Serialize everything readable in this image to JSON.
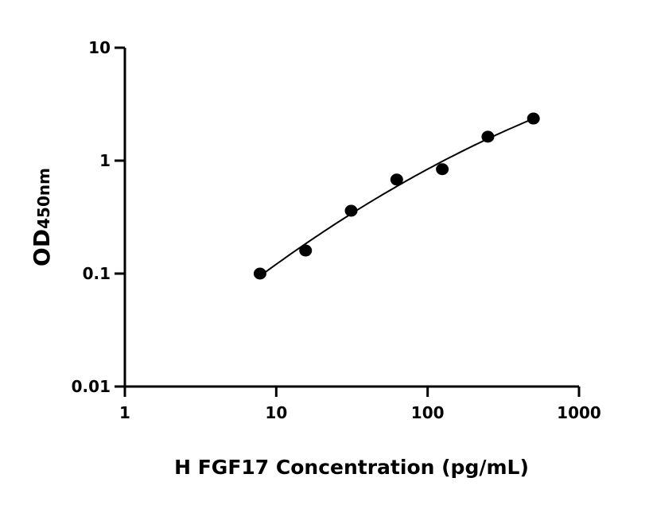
{
  "chart_data": {
    "type": "scatter",
    "title": "",
    "xlabel": "H FGF17 Concentration (pg/mL)",
    "ylabel_main": "OD",
    "ylabel_sub": "450nm",
    "x_scale": "log",
    "y_scale": "log",
    "xlim": [
      1,
      1000
    ],
    "ylim": [
      0.01,
      10
    ],
    "x_ticks": [
      1,
      10,
      100,
      1000
    ],
    "x_tick_labels": [
      "1",
      "10",
      "100",
      "1000"
    ],
    "y_ticks": [
      0.01,
      0.1,
      1,
      10
    ],
    "y_tick_labels": [
      "0.01",
      "0.1",
      "1",
      "10"
    ],
    "grid": false,
    "fit_curve": true,
    "points": [
      {
        "x": 7.8125,
        "y": 0.1
      },
      {
        "x": 15.625,
        "y": 0.16
      },
      {
        "x": 31.25,
        "y": 0.36
      },
      {
        "x": 62.5,
        "y": 0.68
      },
      {
        "x": 125,
        "y": 0.84
      },
      {
        "x": 250,
        "y": 1.63
      },
      {
        "x": 500,
        "y": 2.36
      }
    ],
    "color": "#000000"
  }
}
